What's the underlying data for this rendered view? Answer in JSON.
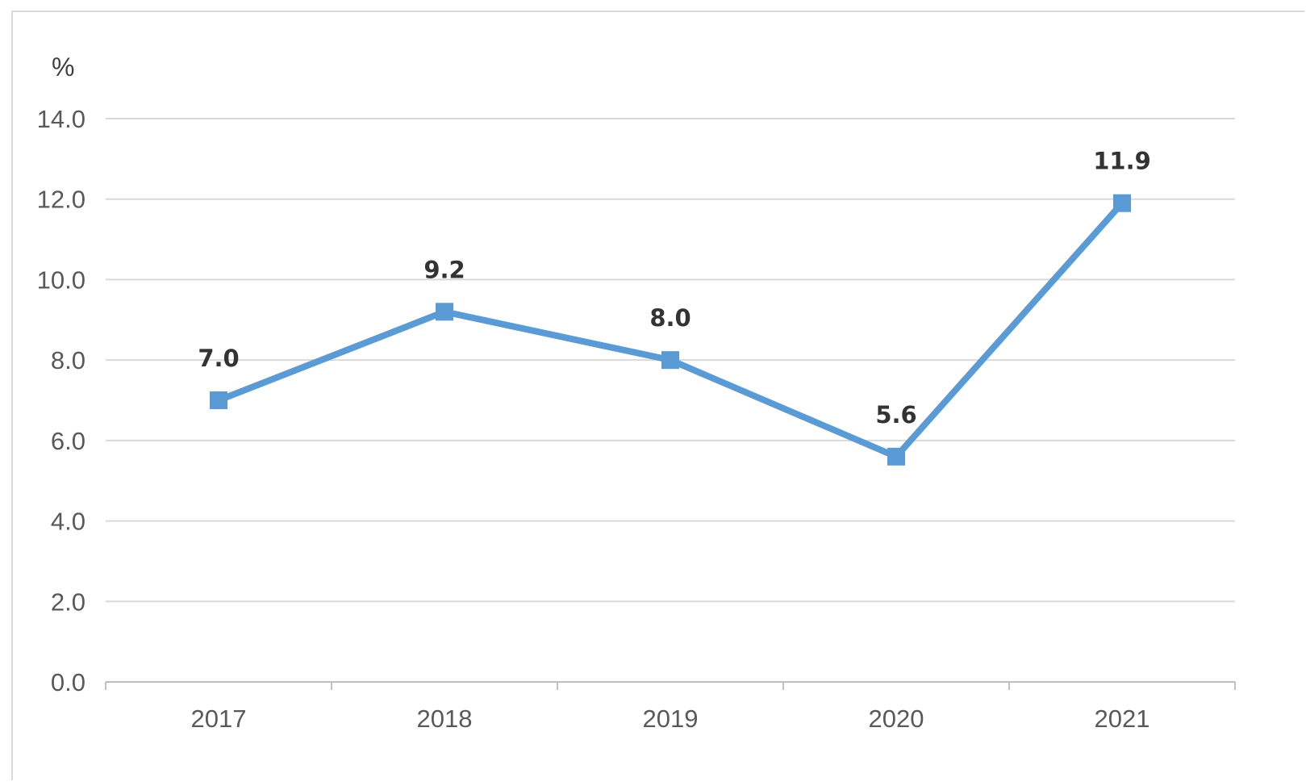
{
  "chart_data": {
    "type": "line",
    "title": "",
    "xlabel": "",
    "ylabel": "%",
    "categories": [
      "2017",
      "2018",
      "2019",
      "2020",
      "2021"
    ],
    "series": [
      {
        "values": [
          7.0,
          9.2,
          8.0,
          5.6,
          11.9
        ]
      }
    ],
    "data_labels": [
      "7.0",
      "9.2",
      "8.0",
      "5.6",
      "11.9"
    ],
    "ylim": [
      0,
      14
    ],
    "yticks": [
      0,
      2,
      4,
      6,
      8,
      10,
      12,
      14
    ],
    "ytick_labels": [
      "0.0",
      "2.0",
      "4.0",
      "6.0",
      "8.0",
      "10.0",
      "12.0",
      "14.0"
    ],
    "grid": true,
    "legend": "none",
    "marker": "square",
    "colors": {
      "series": "#5b9bd5",
      "grid": "#d9d9d9",
      "axis": "#bfbfbf",
      "tick_text": "#595959",
      "label_text": "#333333"
    }
  }
}
